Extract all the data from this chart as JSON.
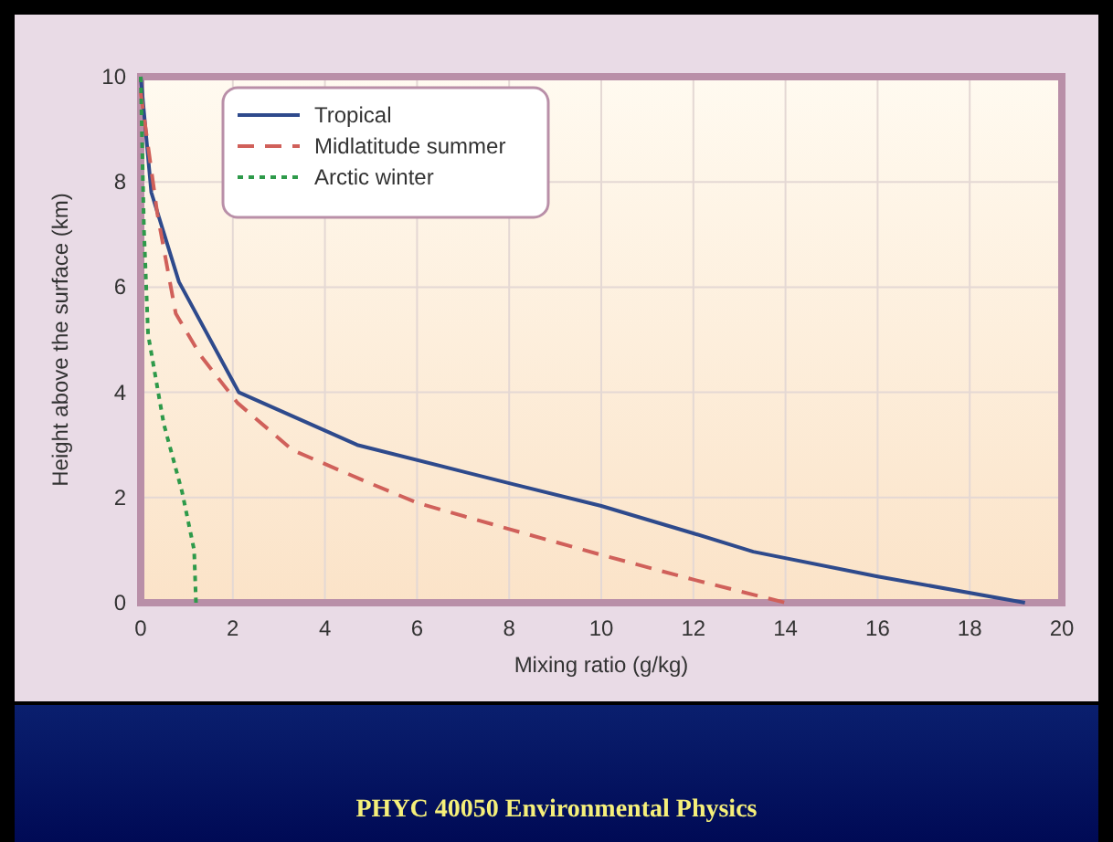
{
  "chart_data": {
    "type": "line",
    "xlabel": "Mixing ratio (g/kg)",
    "ylabel": "Height above the surface (km)",
    "xlim": [
      0,
      20
    ],
    "xticks": [
      0,
      2,
      4,
      6,
      8,
      10,
      12,
      14,
      16,
      18,
      20
    ],
    "ylim": [
      0,
      10
    ],
    "yticks": [
      0,
      2,
      4,
      6,
      8,
      10
    ],
    "grid": true,
    "legend": "top left",
    "series": [
      {
        "name": "Tropical",
        "color": "#2e4a8c",
        "line_style": "solid",
        "x": [
          0,
          0.23,
          0.83,
          2.13,
          4.7,
          8.1,
          10,
          12,
          13.3,
          16,
          19.2
        ],
        "values": [
          10,
          7.8,
          6.1,
          4.0,
          3.0,
          2.25,
          1.84,
          1.32,
          0.97,
          0.5,
          0
        ]
      },
      {
        "name": "Midlatitude summer",
        "color": "#d0605a",
        "line_style": "dashed",
        "x": [
          0,
          0.36,
          0.76,
          1.3,
          2.1,
          3.3,
          4.9,
          6.0,
          8.0,
          10,
          12,
          14
        ],
        "values": [
          9.7,
          7.4,
          5.5,
          4.7,
          3.8,
          2.9,
          2.3,
          1.9,
          1.4,
          0.91,
          0.44,
          0
        ]
      },
      {
        "name": "Arctic winter",
        "color": "#2e9a4a",
        "line_style": "dotted",
        "x": [
          0,
          0.07,
          0.16,
          0.5,
          0.9,
          1.16,
          1.2
        ],
        "values": [
          10,
          7.1,
          5.1,
          3.4,
          2.1,
          1.0,
          0
        ]
      }
    ],
    "annotations": [
      "PHYC 40050 Environmental Physics"
    ]
  }
}
